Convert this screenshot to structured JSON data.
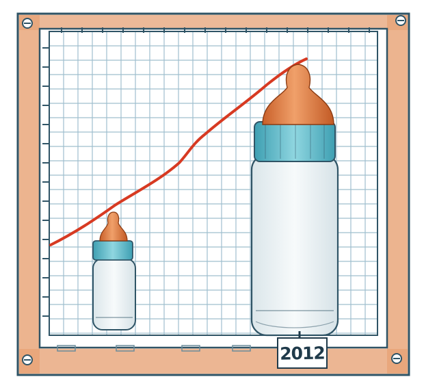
{
  "illustration": {
    "year_label": "2012",
    "small_bottle": {
      "cap": "orange",
      "collar": "teal"
    },
    "large_bottle": {
      "cap": "orange",
      "collar": "teal"
    },
    "trend_line": {
      "color": "#d73a22"
    },
    "colors": {
      "frame_wood": "#e08a5a",
      "grid_lines": "#8fb4c6",
      "outline": "#2f5466",
      "nipple": "#e07a3a",
      "collar": "#6cc0cf",
      "bottle_body": "#eef3f5",
      "label_ink": "#1f3a4a"
    }
  }
}
